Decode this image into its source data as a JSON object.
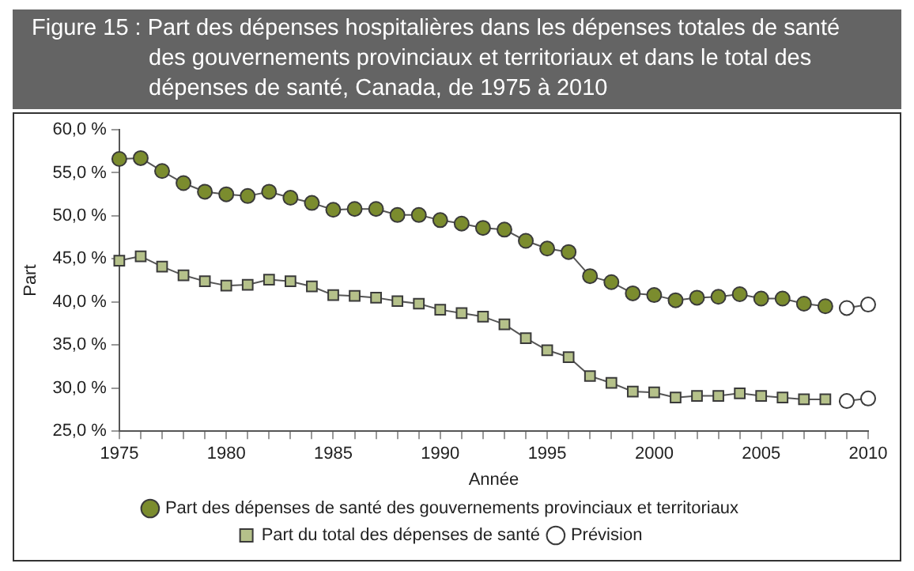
{
  "chart_data": {
    "type": "line",
    "title": "Figure 15 : Part des dépenses hospitalières dans les dépenses totales de santé des gouvernements provinciaux et territoriaux et dans le total des dépenses de santé, Canada, de 1975 à 2010",
    "xlabel": "Année",
    "ylabel": "Part",
    "xlim": [
      1975,
      2010
    ],
    "xticks": [
      1975,
      {
        "value": 1976,
        "label": null
      },
      {
        "value": 1977,
        "label": null
      },
      {
        "value": 1978,
        "label": null
      },
      {
        "value": 1979,
        "label": null
      },
      1980,
      {
        "value": 1981,
        "label": null
      },
      {
        "value": 1982,
        "label": null
      },
      {
        "value": 1983,
        "label": null
      },
      {
        "value": 1984,
        "label": null
      },
      1985,
      {
        "value": 1986,
        "label": null
      },
      {
        "value": 1987,
        "label": null
      },
      {
        "value": 1988,
        "label": null
      },
      {
        "value": 1989,
        "label": null
      },
      1990,
      {
        "value": 1991,
        "label": null
      },
      {
        "value": 1992,
        "label": null
      },
      {
        "value": 1993,
        "label": null
      },
      {
        "value": 1994,
        "label": null
      },
      1995,
      {
        "value": 1996,
        "label": null
      },
      {
        "value": 1997,
        "label": null
      },
      {
        "value": 1998,
        "label": null
      },
      {
        "value": 1999,
        "label": null
      },
      2000,
      {
        "value": 2001,
        "label": null
      },
      {
        "value": 2002,
        "label": null
      },
      {
        "value": 2003,
        "label": null
      },
      {
        "value": 2004,
        "label": null
      },
      2005,
      {
        "value": 2006,
        "label": null
      },
      {
        "value": 2007,
        "label": null
      },
      {
        "value": 2008,
        "label": null
      },
      {
        "value": 2009,
        "label": null
      },
      2010
    ],
    "ylim": [
      25,
      60
    ],
    "yticks": [
      {
        "value": 25,
        "label": "25,0 %"
      },
      {
        "value": 30,
        "label": "30,0 %"
      },
      {
        "value": 35,
        "label": "35,0 %"
      },
      {
        "value": 40,
        "label": "40,0 %"
      },
      {
        "value": 45,
        "label": "45,0 %"
      },
      {
        "value": 50,
        "label": "50,0 %"
      },
      {
        "value": 55,
        "label": "55,0 %"
      },
      {
        "value": 60,
        "label": "60,0 %"
      }
    ],
    "grid": false,
    "legend": "bottom",
    "line_style": "solid",
    "x": [
      1975,
      1976,
      1977,
      1978,
      1979,
      1980,
      1981,
      1982,
      1983,
      1984,
      1985,
      1986,
      1987,
      1988,
      1989,
      1990,
      1991,
      1992,
      1993,
      1994,
      1995,
      1996,
      1997,
      1998,
      1999,
      2000,
      2001,
      2002,
      2003,
      2004,
      2005,
      2006,
      2007,
      2008,
      2009,
      2010
    ],
    "series": [
      {
        "name": "Part des dépenses de santé des gouvernements provinciaux et territoriaux",
        "color": "#7b8c2e",
        "marker": "circle",
        "values": [
          56.6,
          56.7,
          55.2,
          53.8,
          52.8,
          52.5,
          52.3,
          52.8,
          52.1,
          51.5,
          50.7,
          50.8,
          50.8,
          50.1,
          50.1,
          49.5,
          49.1,
          48.6,
          48.4,
          47.1,
          46.2,
          45.8,
          43.0,
          42.3,
          41.0,
          40.8,
          40.2,
          40.5,
          40.6,
          40.9,
          40.4,
          40.4,
          39.8,
          39.5,
          null,
          null
        ]
      },
      {
        "name": "Part du total des dépenses de santé",
        "color": "#b5c18a",
        "marker": "square",
        "values": [
          44.8,
          45.3,
          44.1,
          43.1,
          42.4,
          41.9,
          42.0,
          42.6,
          42.4,
          41.8,
          40.8,
          40.7,
          40.5,
          40.1,
          39.8,
          39.1,
          38.7,
          38.3,
          37.4,
          35.8,
          34.4,
          33.6,
          31.4,
          30.6,
          29.6,
          29.5,
          28.9,
          29.1,
          29.1,
          29.4,
          29.1,
          28.9,
          28.7,
          28.7,
          null,
          null
        ]
      },
      {
        "name": "Prévision",
        "color": "#ffffff",
        "marker": "circle",
        "values": [
          null,
          null,
          null,
          null,
          null,
          null,
          null,
          null,
          null,
          null,
          null,
          null,
          null,
          null,
          null,
          null,
          null,
          null,
          null,
          null,
          null,
          null,
          null,
          null,
          null,
          null,
          null,
          null,
          null,
          null,
          null,
          null,
          null,
          null,
          39.3,
          39.7
        ]
      },
      {
        "color": "#ffffff",
        "marker": "circle",
        "values": [
          null,
          null,
          null,
          null,
          null,
          null,
          null,
          null,
          null,
          null,
          null,
          null,
          null,
          null,
          null,
          null,
          null,
          null,
          null,
          null,
          null,
          null,
          null,
          null,
          null,
          null,
          null,
          null,
          null,
          null,
          null,
          null,
          null,
          null,
          28.5,
          28.8
        ]
      }
    ]
  }
}
